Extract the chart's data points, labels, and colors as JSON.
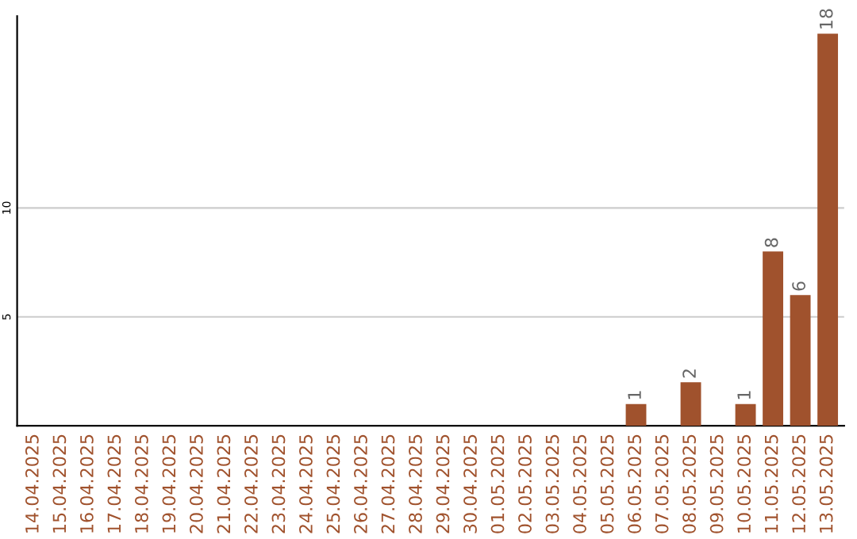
{
  "chart_data": {
    "type": "bar",
    "categories": [
      "14.04.2025",
      "15.04.2025",
      "16.04.2025",
      "17.04.2025",
      "18.04.2025",
      "19.04.2025",
      "20.04.2025",
      "21.04.2025",
      "22.04.2025",
      "23.04.2025",
      "24.04.2025",
      "25.04.2025",
      "26.04.2025",
      "27.04.2025",
      "28.04.2025",
      "29.04.2025",
      "30.04.2025",
      "01.05.2025",
      "02.05.2025",
      "03.05.2025",
      "04.05.2025",
      "05.05.2025",
      "06.05.2025",
      "07.05.2025",
      "08.05.2025",
      "09.05.2025",
      "10.05.2025",
      "11.05.2025",
      "12.05.2025",
      "13.05.2025"
    ],
    "values": [
      0,
      0,
      0,
      0,
      0,
      0,
      0,
      0,
      0,
      0,
      0,
      0,
      0,
      0,
      0,
      0,
      0,
      0,
      0,
      0,
      0,
      0,
      1,
      0,
      2,
      0,
      1,
      8,
      6,
      18
    ],
    "value_labels": [
      null,
      null,
      null,
      null,
      null,
      null,
      null,
      null,
      null,
      null,
      null,
      null,
      null,
      null,
      null,
      null,
      null,
      null,
      null,
      null,
      null,
      null,
      "1",
      null,
      "2",
      null,
      "1",
      "8",
      "6",
      "18"
    ],
    "color": "#a0522d",
    "ylim": [
      0,
      18.8
    ],
    "yticks": [
      5,
      10
    ],
    "grid": "y"
  }
}
